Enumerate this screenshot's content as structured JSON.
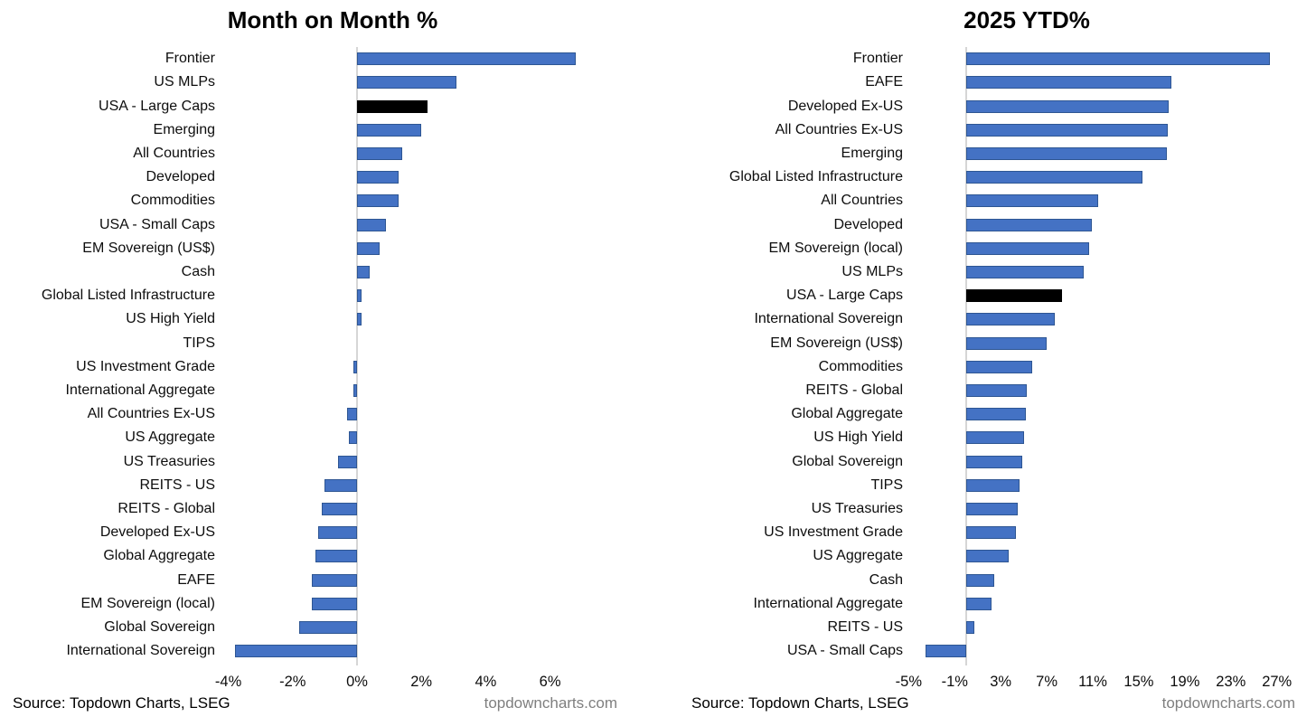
{
  "page": {
    "background": "#FFFFFF"
  },
  "colors": {
    "bar_fill": "#4472C4",
    "bar_border": "#2E5693",
    "highlight_fill": "#000000",
    "axis_line": "#D6D6D6",
    "text": "#000000",
    "website_text": "#7F7F7F"
  },
  "charts": [
    {
      "title": "Month on Month %",
      "footer": {
        "source": "Source: Topdown Charts, LSEG",
        "website": "topdowncharts.com"
      },
      "chart_data": {
        "type": "bar",
        "orientation": "horizontal",
        "title": "Month on Month %",
        "xlim": [
          -5,
          7
        ],
        "xticks": [
          -4,
          -2,
          0,
          2,
          4,
          6
        ],
        "tick_suffix": "%",
        "grid": false,
        "highlight_category": "USA - Large Caps",
        "categories": [
          "Frontier",
          "US MLPs",
          "USA - Large Caps",
          "Emerging",
          "All Countries",
          "Developed",
          "Commodities",
          "USA - Small Caps",
          "EM Sovereign (US$)",
          "Cash",
          "Global Listed Infrastructure",
          "US High Yield",
          "TIPS",
          "US Investment Grade",
          "International Aggregate",
          "All Countries Ex-US",
          "US Aggregate",
          "US Treasuries",
          "REITS - US",
          "REITS - Global",
          "Developed Ex-US",
          "Global Aggregate",
          "EAFE",
          "EM Sovereign (local)",
          "Global Sovereign",
          "International Sovereign"
        ],
        "values": [
          6.8,
          3.1,
          2.2,
          2.0,
          1.4,
          1.3,
          1.3,
          0.9,
          0.7,
          0.4,
          0.15,
          0.15,
          0.0,
          -0.1,
          -0.1,
          -0.3,
          -0.25,
          -0.6,
          -1.0,
          -1.1,
          -1.2,
          -1.3,
          -1.4,
          -1.4,
          -1.8,
          -3.8
        ]
      }
    },
    {
      "title": "2025 YTD%",
      "footer": {
        "source": "Source: Topdown Charts, LSEG",
        "website": "topdowncharts.com"
      },
      "chart_data": {
        "type": "bar",
        "orientation": "horizontal",
        "title": "2025 YTD%",
        "xlim": [
          -5,
          28
        ],
        "xticks": [
          -5,
          -1,
          3,
          7,
          11,
          15,
          19,
          23,
          27
        ],
        "tick_suffix": "%",
        "grid": false,
        "highlight_category": "USA - Large Caps",
        "categories": [
          "Frontier",
          "EAFE",
          "Developed Ex-US",
          "All Countries Ex-US",
          "Emerging",
          "Global Listed Infrastructure",
          "All Countries",
          "Developed",
          "EM Sovereign (local)",
          "US MLPs",
          "USA - Large Caps",
          "International Sovereign",
          "EM Sovereign (US$)",
          "Commodities",
          "REITS - Global",
          "Global Aggregate",
          "US High Yield",
          "Global Sovereign",
          "TIPS",
          "US Treasuries",
          "US Investment Grade",
          "US Aggregate",
          "Cash",
          "International Aggregate",
          "REITS - US",
          "USA - Small Caps"
        ],
        "values": [
          26.4,
          17.8,
          17.6,
          17.5,
          17.4,
          15.3,
          11.5,
          10.9,
          10.7,
          10.2,
          8.3,
          7.7,
          7.0,
          5.7,
          5.3,
          5.2,
          5.0,
          4.9,
          4.6,
          4.5,
          4.3,
          3.7,
          2.4,
          2.2,
          0.7,
          -3.5
        ]
      }
    }
  ]
}
